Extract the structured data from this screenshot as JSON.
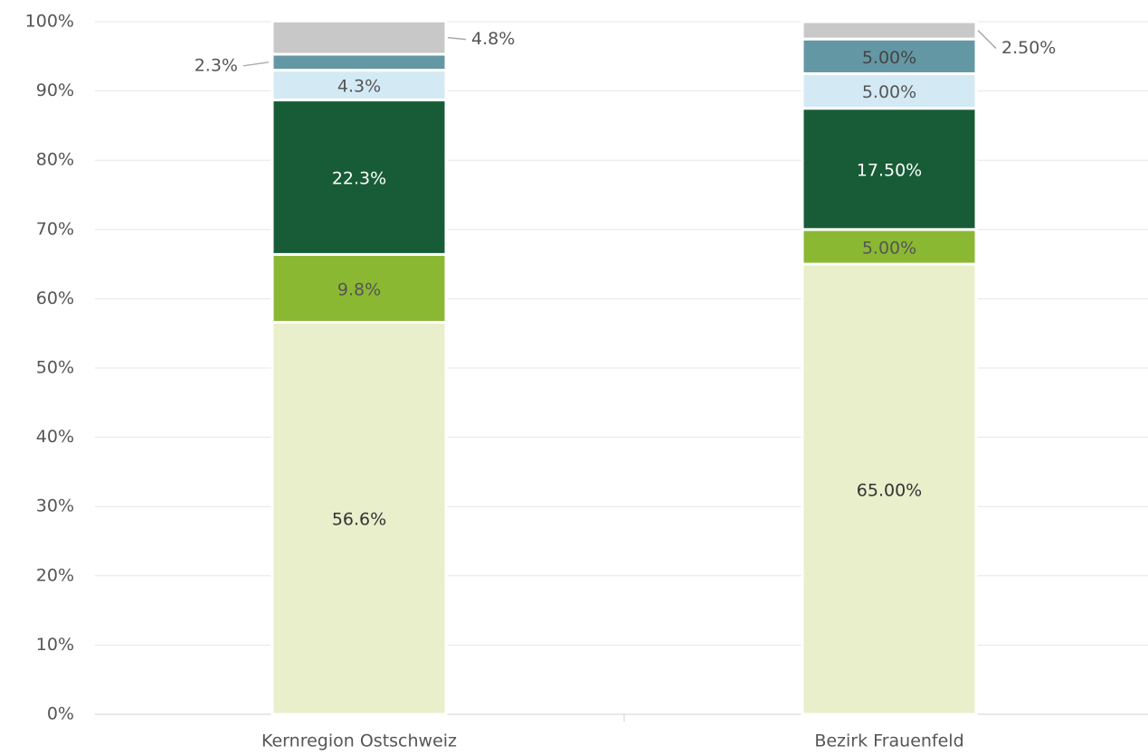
{
  "chart_data": {
    "type": "stacked_bar",
    "categories": [
      "Kernregion Ostschweiz",
      "Bezirk Frauenfeld"
    ],
    "series": [
      {
        "color": "#e8efca",
        "values": [
          56.6,
          65.0
        ],
        "value_labels": [
          "56.6%",
          "65.00%"
        ]
      },
      {
        "color": "#8bb833",
        "values": [
          9.8,
          5.0
        ],
        "value_labels": [
          "9.8%",
          "5.00%"
        ]
      },
      {
        "color": "#175c36",
        "values": [
          22.3,
          17.5
        ],
        "value_labels": [
          "22.3%",
          "17.50%"
        ]
      },
      {
        "color": "#d3eaf5",
        "values": [
          4.3,
          5.0
        ],
        "value_labels": [
          "4.3%",
          "5.00%"
        ]
      },
      {
        "color": "#6497a4",
        "values": [
          2.3,
          5.0
        ],
        "value_labels": [
          "2.3%",
          "5.00%"
        ]
      },
      {
        "color": "#c8c8c8",
        "values": [
          4.8,
          2.5
        ],
        "value_labels": [
          "4.8%",
          "2.50%"
        ]
      }
    ],
    "ylim": [
      0,
      100
    ],
    "yticks": [
      {
        "value": 0,
        "label": "0%"
      },
      {
        "value": 10,
        "label": "10%"
      },
      {
        "value": 20,
        "label": "20%"
      },
      {
        "value": 30,
        "label": "30%"
      },
      {
        "value": 40,
        "label": "40%"
      },
      {
        "value": 50,
        "label": "50%"
      },
      {
        "value": 60,
        "label": "60%"
      },
      {
        "value": 70,
        "label": "70%"
      },
      {
        "value": 80,
        "label": "80%"
      },
      {
        "value": 90,
        "label": "90%"
      },
      {
        "value": 100,
        "label": "100%"
      }
    ],
    "grid": true
  }
}
